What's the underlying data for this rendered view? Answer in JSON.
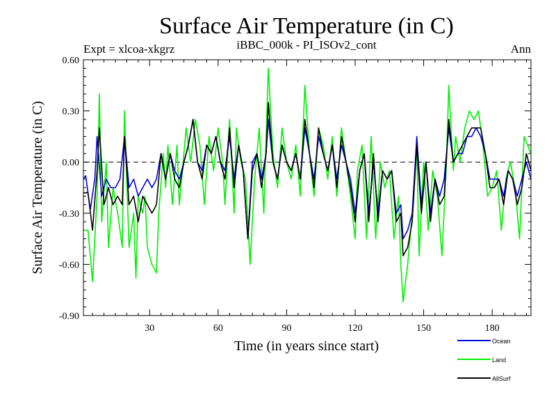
{
  "chart_data": {
    "type": "line",
    "title": "Surface Air Temperature (in C)",
    "subtitle_left": "Expt = xlcoa-xkgrz",
    "subtitle_center": "iBBC_000k - PI_ISOv2_cont",
    "subtitle_right": "Ann",
    "xlabel": "Time (in years since start)",
    "ylabel": "Surface Air Temperature (in C)",
    "xlim": [
      1,
      197
    ],
    "ylim": [
      -0.9,
      0.6
    ],
    "xticks": [
      30,
      60,
      90,
      120,
      150,
      180
    ],
    "yticks": [
      0.6,
      0.3,
      0.0,
      -0.3,
      -0.6,
      -0.9
    ],
    "ytick_labels": [
      "0.60",
      "0.30",
      "0.00",
      "-0.30",
      "-0.60",
      "-0.90"
    ],
    "zero_line": "dashed",
    "series": [
      {
        "name": "Land",
        "color": "#00ee00",
        "knots": [
          [
            1,
            -0.4
          ],
          [
            3,
            -0.4
          ],
          [
            5,
            -0.7
          ],
          [
            7,
            -0.2
          ],
          [
            8,
            0.4
          ],
          [
            9,
            -0.35
          ],
          [
            11,
            0.0
          ],
          [
            12,
            -0.5
          ],
          [
            14,
            -0.15
          ],
          [
            16,
            -0.3
          ],
          [
            18,
            -0.5
          ],
          [
            19,
            0.3
          ],
          [
            21,
            -0.5
          ],
          [
            23,
            -0.3
          ],
          [
            24,
            -0.68
          ],
          [
            25,
            -0.2
          ],
          [
            27,
            -0.3
          ],
          [
            28,
            -0.2
          ],
          [
            29,
            -0.5
          ],
          [
            31,
            -0.6
          ],
          [
            33,
            -0.65
          ],
          [
            34,
            -0.3
          ],
          [
            36,
            0.05
          ],
          [
            37,
            -0.15
          ],
          [
            38,
            0.1
          ],
          [
            40,
            -0.25
          ],
          [
            42,
            0.1
          ],
          [
            43,
            -0.25
          ],
          [
            44,
            -0.1
          ],
          [
            46,
            0.2
          ],
          [
            48,
            0.0
          ],
          [
            50,
            0.25
          ],
          [
            52,
            0.1
          ],
          [
            54,
            -0.25
          ],
          [
            56,
            0.15
          ],
          [
            58,
            -0.05
          ],
          [
            60,
            0.2
          ],
          [
            62,
            0.0
          ],
          [
            63,
            -0.25
          ],
          [
            65,
            0.25
          ],
          [
            67,
            -0.3
          ],
          [
            68,
            0.2
          ],
          [
            70,
            0.0
          ],
          [
            72,
            -0.1
          ],
          [
            74,
            -0.6
          ],
          [
            76,
            -0.1
          ],
          [
            78,
            0.2
          ],
          [
            80,
            -0.3
          ],
          [
            81,
            0.15
          ],
          [
            82,
            0.55
          ],
          [
            84,
            0.05
          ],
          [
            86,
            -0.15
          ],
          [
            88,
            0.2
          ],
          [
            90,
            0.0
          ],
          [
            92,
            -0.1
          ],
          [
            94,
            0.1
          ],
          [
            96,
            -0.2
          ],
          [
            98,
            0.45
          ],
          [
            100,
            0.05
          ],
          [
            102,
            -0.2
          ],
          [
            104,
            0.2
          ],
          [
            106,
            0.1
          ],
          [
            108,
            -0.1
          ],
          [
            110,
            0.15
          ],
          [
            112,
            -0.2
          ],
          [
            114,
            0.2
          ],
          [
            116,
            0.0
          ],
          [
            118,
            -0.2
          ],
          [
            120,
            -0.45
          ],
          [
            121,
            -0.05
          ],
          [
            123,
            0.1
          ],
          [
            125,
            -0.45
          ],
          [
            127,
            0.15
          ],
          [
            129,
            -0.45
          ],
          [
            131,
            0.0
          ],
          [
            133,
            -0.15
          ],
          [
            135,
            -0.05
          ],
          [
            137,
            -0.45
          ],
          [
            139,
            -0.2
          ],
          [
            140,
            -0.6
          ],
          [
            141,
            -0.82
          ],
          [
            143,
            -0.6
          ],
          [
            145,
            -0.3
          ],
          [
            147,
            0.1
          ],
          [
            148,
            -0.55
          ],
          [
            150,
            0.0
          ],
          [
            152,
            -0.4
          ],
          [
            154,
            -0.05
          ],
          [
            156,
            -0.2
          ],
          [
            158,
            -0.55
          ],
          [
            160,
            0.0
          ],
          [
            161,
            0.45
          ],
          [
            163,
            -0.05
          ],
          [
            164,
            0.15
          ],
          [
            166,
            0.0
          ],
          [
            168,
            0.2
          ],
          [
            170,
            0.3
          ],
          [
            172,
            0.25
          ],
          [
            174,
            0.3
          ],
          [
            176,
            0.1
          ],
          [
            178,
            -0.2
          ],
          [
            180,
            -0.15
          ],
          [
            182,
            -0.05
          ],
          [
            184,
            -0.4
          ],
          [
            186,
            -0.1
          ],
          [
            188,
            0.0
          ],
          [
            190,
            -0.15
          ],
          [
            192,
            -0.45
          ],
          [
            194,
            0.15
          ],
          [
            197,
            0.05
          ]
        ]
      },
      {
        "name": "Ocean",
        "color": "#0000dd",
        "knots": [
          [
            1,
            -0.1
          ],
          [
            2,
            -0.08
          ],
          [
            4,
            -0.28
          ],
          [
            6,
            -0.1
          ],
          [
            7,
            0.15
          ],
          [
            9,
            -0.2
          ],
          [
            11,
            -0.1
          ],
          [
            13,
            -0.15
          ],
          [
            15,
            -0.15
          ],
          [
            17,
            -0.1
          ],
          [
            19,
            0.15
          ],
          [
            21,
            -0.15
          ],
          [
            23,
            -0.1
          ],
          [
            25,
            -0.2
          ],
          [
            27,
            -0.15
          ],
          [
            29,
            -0.1
          ],
          [
            31,
            -0.15
          ],
          [
            33,
            -0.1
          ],
          [
            35,
            0.05
          ],
          [
            37,
            -0.1
          ],
          [
            39,
            0.05
          ],
          [
            41,
            -0.05
          ],
          [
            43,
            -0.1
          ],
          [
            45,
            0.0
          ],
          [
            47,
            0.1
          ],
          [
            49,
            0.25
          ],
          [
            51,
            0.0
          ],
          [
            53,
            -0.05
          ],
          [
            55,
            0.1
          ],
          [
            57,
            0.05
          ],
          [
            59,
            0.15
          ],
          [
            61,
            0.0
          ],
          [
            63,
            -0.05
          ],
          [
            65,
            0.15
          ],
          [
            67,
            -0.1
          ],
          [
            69,
            0.1
          ],
          [
            71,
            -0.05
          ],
          [
            73,
            -0.45
          ],
          [
            75,
            0.0
          ],
          [
            77,
            0.05
          ],
          [
            79,
            -0.1
          ],
          [
            81,
            0.05
          ],
          [
            82,
            0.25
          ],
          [
            84,
            0.0
          ],
          [
            86,
            -0.1
          ],
          [
            88,
            0.1
          ],
          [
            90,
            0.0
          ],
          [
            92,
            -0.05
          ],
          [
            94,
            0.05
          ],
          [
            96,
            -0.1
          ],
          [
            98,
            0.2
          ],
          [
            100,
            0.05
          ],
          [
            102,
            -0.1
          ],
          [
            104,
            0.15
          ],
          [
            106,
            0.05
          ],
          [
            108,
            -0.05
          ],
          [
            110,
            0.1
          ],
          [
            112,
            -0.1
          ],
          [
            114,
            0.1
          ],
          [
            116,
            0.0
          ],
          [
            118,
            -0.1
          ],
          [
            120,
            -0.3
          ],
          [
            122,
            -0.05
          ],
          [
            124,
            0.05
          ],
          [
            126,
            -0.3
          ],
          [
            128,
            0.0
          ],
          [
            130,
            -0.3
          ],
          [
            132,
            -0.05
          ],
          [
            134,
            -0.1
          ],
          [
            136,
            -0.05
          ],
          [
            138,
            -0.3
          ],
          [
            140,
            -0.25
          ],
          [
            141,
            -0.45
          ],
          [
            143,
            -0.4
          ],
          [
            145,
            -0.3
          ],
          [
            147,
            0.15
          ],
          [
            149,
            -0.25
          ],
          [
            151,
            0.0
          ],
          [
            153,
            -0.3
          ],
          [
            155,
            -0.1
          ],
          [
            157,
            -0.2
          ],
          [
            159,
            -0.1
          ],
          [
            161,
            0.2
          ],
          [
            163,
            0.0
          ],
          [
            165,
            0.05
          ],
          [
            167,
            0.05
          ],
          [
            169,
            0.15
          ],
          [
            171,
            0.15
          ],
          [
            173,
            0.2
          ],
          [
            175,
            0.15
          ],
          [
            177,
            0.05
          ],
          [
            179,
            -0.1
          ],
          [
            181,
            -0.1
          ],
          [
            183,
            -0.1
          ],
          [
            185,
            -0.2
          ],
          [
            187,
            -0.05
          ],
          [
            189,
            -0.1
          ],
          [
            191,
            -0.2
          ],
          [
            193,
            -0.1
          ],
          [
            195,
            0.0
          ],
          [
            197,
            -0.1
          ]
        ]
      },
      {
        "name": "AllSurf",
        "color": "#000000",
        "knots": [
          [
            1,
            -0.18
          ],
          [
            3,
            -0.18
          ],
          [
            5,
            -0.4
          ],
          [
            7,
            -0.05
          ],
          [
            8,
            0.2
          ],
          [
            10,
            -0.25
          ],
          [
            12,
            -0.15
          ],
          [
            14,
            -0.25
          ],
          [
            16,
            -0.2
          ],
          [
            18,
            -0.25
          ],
          [
            19,
            0.15
          ],
          [
            21,
            -0.25
          ],
          [
            23,
            -0.2
          ],
          [
            25,
            -0.35
          ],
          [
            27,
            -0.2
          ],
          [
            29,
            -0.25
          ],
          [
            31,
            -0.3
          ],
          [
            33,
            -0.25
          ],
          [
            35,
            0.05
          ],
          [
            37,
            -0.1
          ],
          [
            39,
            0.05
          ],
          [
            41,
            -0.1
          ],
          [
            43,
            -0.15
          ],
          [
            45,
            0.0
          ],
          [
            47,
            0.1
          ],
          [
            49,
            0.25
          ],
          [
            51,
            0.0
          ],
          [
            53,
            -0.1
          ],
          [
            55,
            0.1
          ],
          [
            57,
            0.05
          ],
          [
            59,
            0.15
          ],
          [
            61,
            0.0
          ],
          [
            63,
            -0.1
          ],
          [
            65,
            0.2
          ],
          [
            67,
            -0.15
          ],
          [
            69,
            0.1
          ],
          [
            71,
            -0.05
          ],
          [
            73,
            -0.45
          ],
          [
            75,
            -0.05
          ],
          [
            77,
            0.05
          ],
          [
            79,
            -0.15
          ],
          [
            81,
            0.05
          ],
          [
            82,
            0.35
          ],
          [
            84,
            0.0
          ],
          [
            86,
            -0.1
          ],
          [
            88,
            0.1
          ],
          [
            90,
            0.0
          ],
          [
            92,
            -0.05
          ],
          [
            94,
            0.05
          ],
          [
            96,
            -0.1
          ],
          [
            98,
            0.25
          ],
          [
            100,
            0.05
          ],
          [
            102,
            -0.15
          ],
          [
            104,
            0.2
          ],
          [
            106,
            0.05
          ],
          [
            108,
            -0.05
          ],
          [
            110,
            0.1
          ],
          [
            112,
            -0.15
          ],
          [
            114,
            0.15
          ],
          [
            116,
            0.0
          ],
          [
            118,
            -0.15
          ],
          [
            120,
            -0.35
          ],
          [
            122,
            -0.05
          ],
          [
            124,
            0.05
          ],
          [
            126,
            -0.35
          ],
          [
            128,
            0.05
          ],
          [
            130,
            -0.35
          ],
          [
            132,
            -0.05
          ],
          [
            134,
            -0.1
          ],
          [
            136,
            -0.05
          ],
          [
            138,
            -0.35
          ],
          [
            140,
            -0.3
          ],
          [
            141,
            -0.55
          ],
          [
            143,
            -0.5
          ],
          [
            145,
            -0.35
          ],
          [
            147,
            0.1
          ],
          [
            149,
            -0.3
          ],
          [
            151,
            0.0
          ],
          [
            153,
            -0.35
          ],
          [
            155,
            -0.1
          ],
          [
            157,
            -0.25
          ],
          [
            159,
            -0.2
          ],
          [
            161,
            0.25
          ],
          [
            163,
            0.0
          ],
          [
            165,
            0.05
          ],
          [
            167,
            0.1
          ],
          [
            169,
            0.15
          ],
          [
            171,
            0.2
          ],
          [
            173,
            0.2
          ],
          [
            175,
            0.2
          ],
          [
            177,
            0.05
          ],
          [
            179,
            -0.15
          ],
          [
            181,
            -0.15
          ],
          [
            183,
            -0.1
          ],
          [
            185,
            -0.25
          ],
          [
            187,
            -0.05
          ],
          [
            189,
            -0.1
          ],
          [
            191,
            -0.25
          ],
          [
            193,
            -0.15
          ],
          [
            195,
            0.05
          ],
          [
            197,
            -0.05
          ]
        ]
      }
    ],
    "legend": {
      "placement": "bottom-right",
      "entries": [
        "Ocean",
        "Land",
        "AllSurf"
      ]
    }
  }
}
